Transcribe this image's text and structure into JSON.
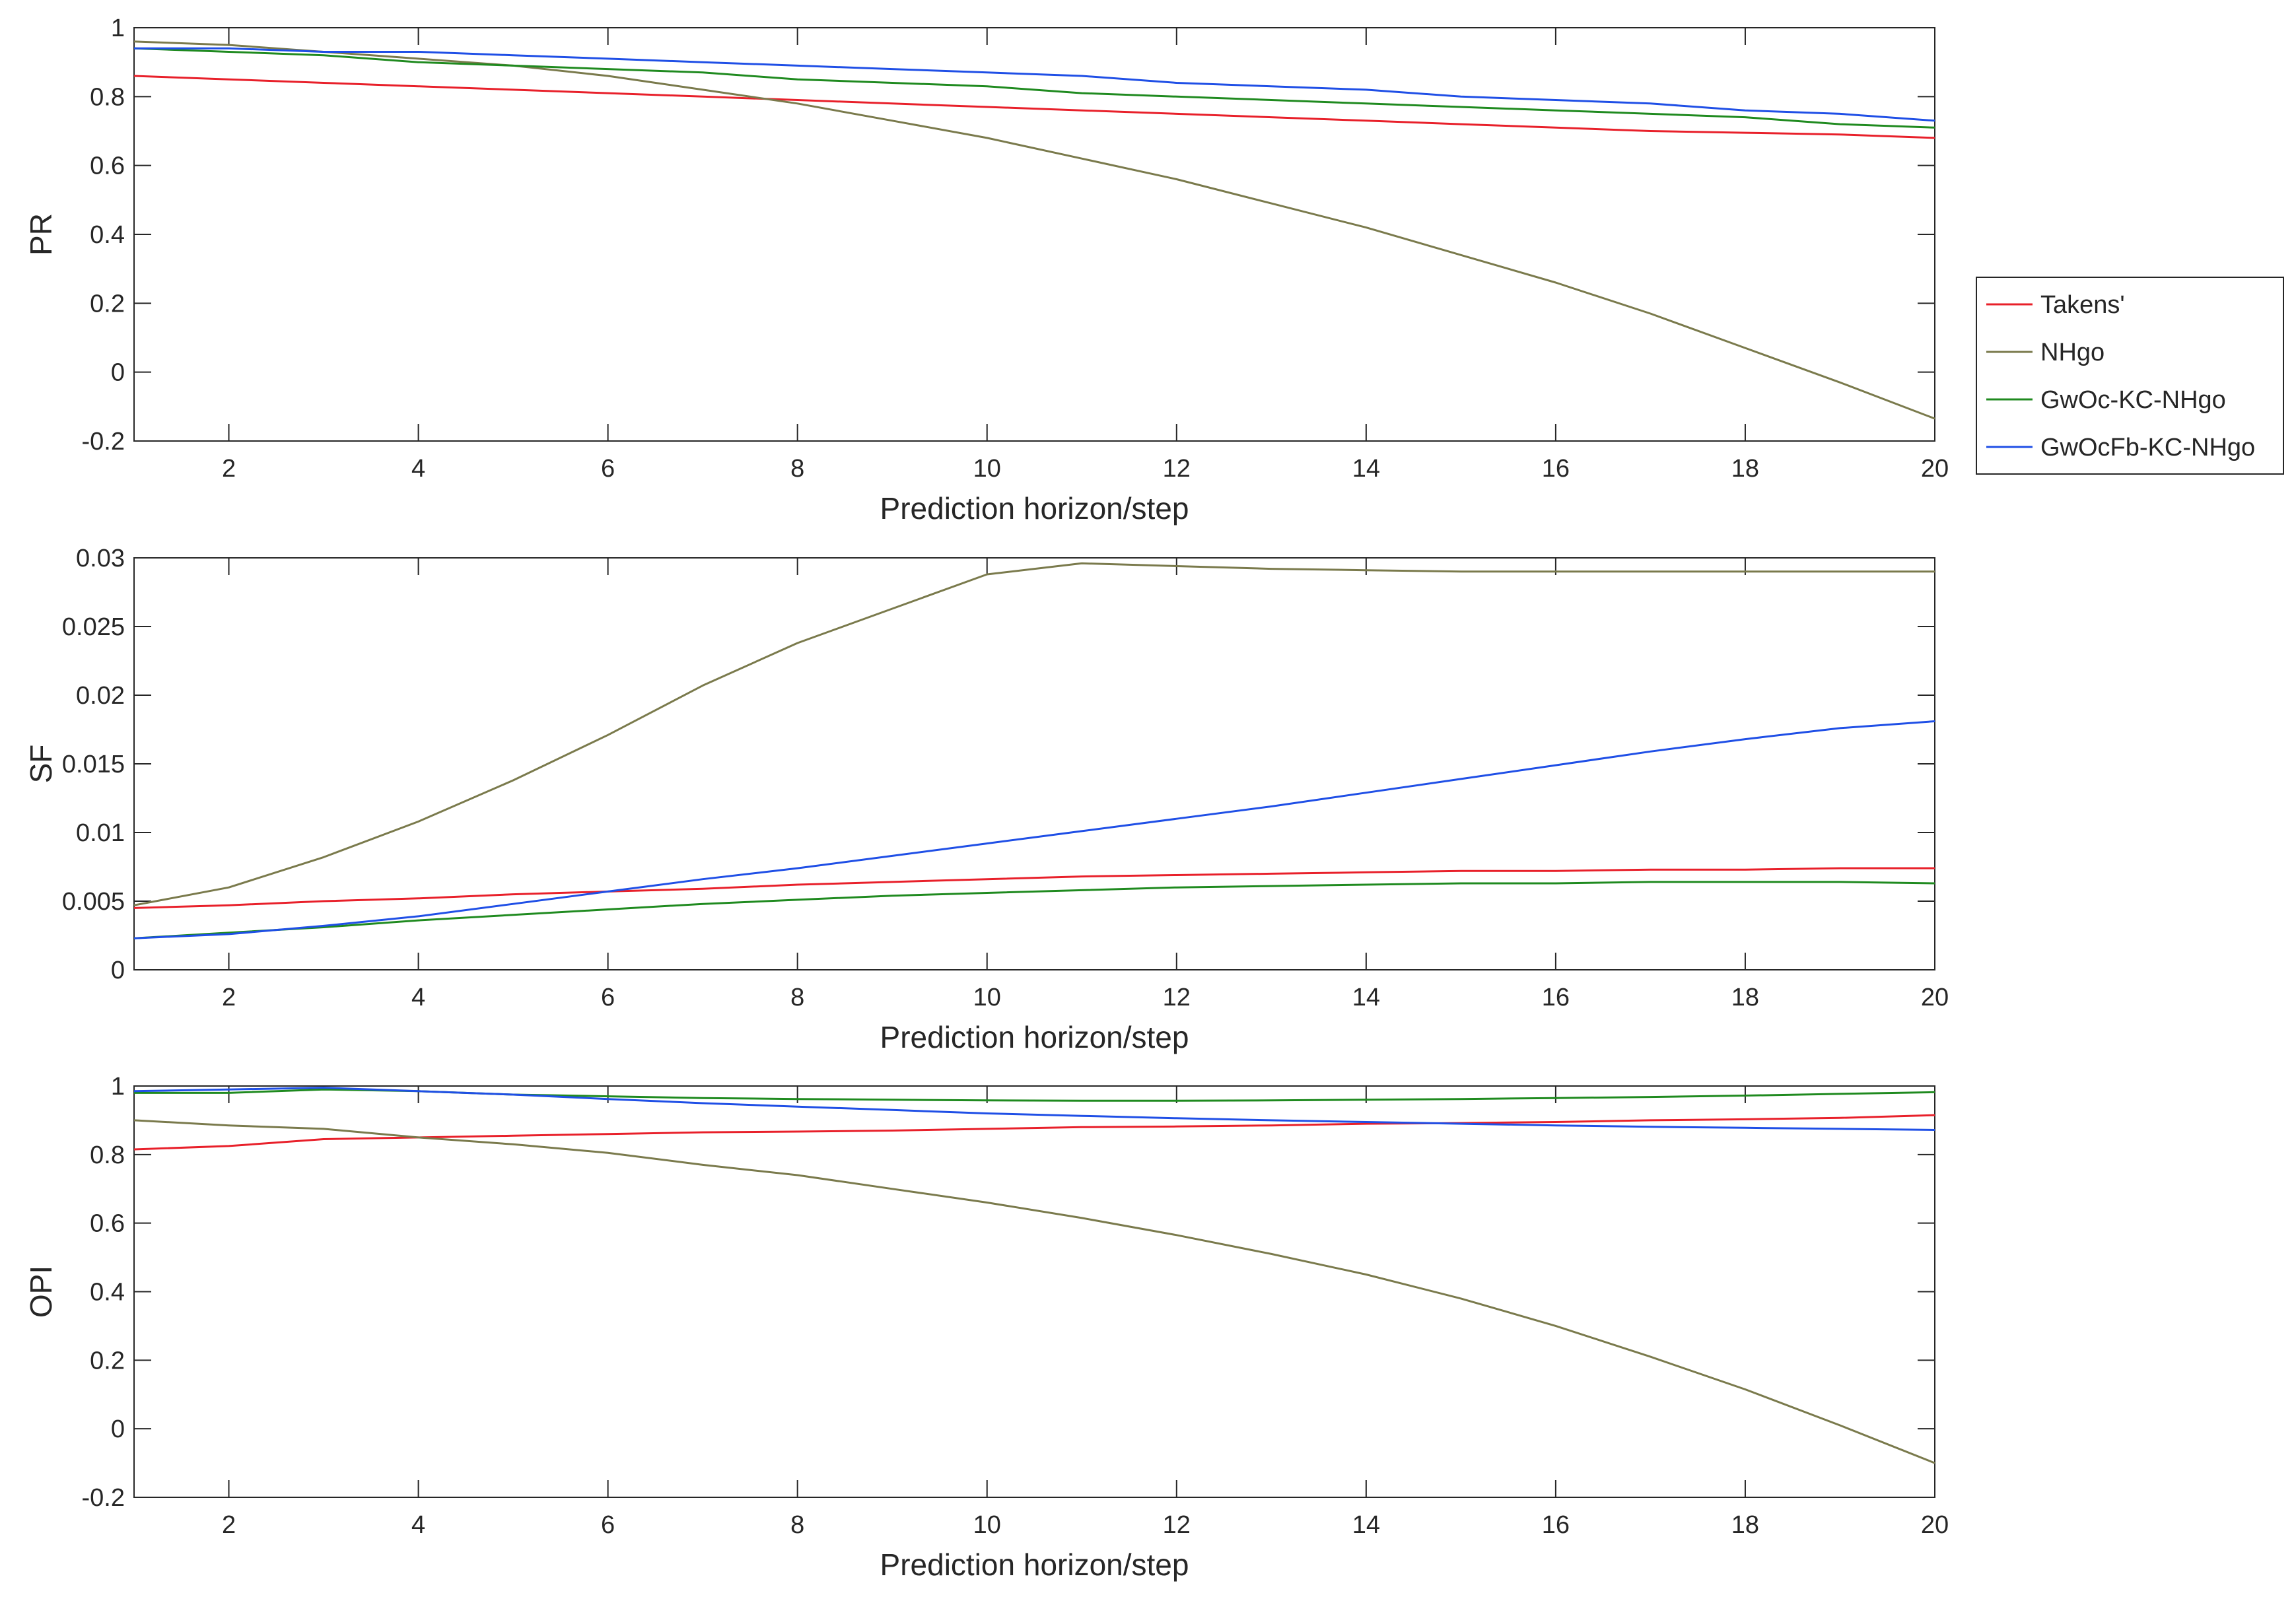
{
  "legend": {
    "placement": "right",
    "entries": [
      {
        "label": "Takens'",
        "color": "#e8202a"
      },
      {
        "label": "NHgo",
        "color": "#7a7a4c"
      },
      {
        "label": "GwOc-KC-NHgo",
        "color": "#1f8a1f"
      },
      {
        "label": "GwOcFb-KC-NHgo",
        "color": "#1f4fe6"
      }
    ]
  },
  "chart_data": [
    {
      "type": "line",
      "xlabel": "Prediction horizon/step",
      "ylabel": "PR",
      "xlim": [
        1,
        20
      ],
      "ylim": [
        -0.2,
        1
      ],
      "xticks": [
        2,
        4,
        6,
        8,
        10,
        12,
        14,
        16,
        18,
        20
      ],
      "yticks": [
        -0.2,
        0,
        0.2,
        0.4,
        0.6,
        0.8,
        1
      ],
      "ytick_labels": [
        "-0.2",
        "0",
        "0.2",
        "0.4",
        "0.6",
        "0.8",
        "1"
      ],
      "grid": false,
      "x": [
        1,
        2,
        3,
        4,
        5,
        6,
        7,
        8,
        9,
        10,
        11,
        12,
        13,
        14,
        15,
        16,
        17,
        18,
        19,
        20
      ],
      "series": [
        {
          "name": "Takens'",
          "color": "#e8202a",
          "values": [
            0.86,
            0.85,
            0.84,
            0.83,
            0.82,
            0.81,
            0.8,
            0.79,
            0.78,
            0.77,
            0.76,
            0.75,
            0.74,
            0.73,
            0.72,
            0.71,
            0.7,
            0.695,
            0.69,
            0.68
          ]
        },
        {
          "name": "NHgo",
          "color": "#7a7a4c",
          "values": [
            0.96,
            0.95,
            0.93,
            0.91,
            0.89,
            0.86,
            0.82,
            0.78,
            0.73,
            0.68,
            0.62,
            0.56,
            0.49,
            0.42,
            0.34,
            0.26,
            0.17,
            0.07,
            -0.03,
            -0.135
          ]
        },
        {
          "name": "GwOc-KC-NHgo",
          "color": "#1f8a1f",
          "values": [
            0.94,
            0.93,
            0.92,
            0.9,
            0.89,
            0.88,
            0.87,
            0.85,
            0.84,
            0.83,
            0.81,
            0.8,
            0.79,
            0.78,
            0.77,
            0.76,
            0.75,
            0.74,
            0.72,
            0.71
          ]
        },
        {
          "name": "GwOcFb-KC-NHgo",
          "color": "#1f4fe6",
          "values": [
            0.94,
            0.94,
            0.93,
            0.93,
            0.92,
            0.91,
            0.9,
            0.89,
            0.88,
            0.87,
            0.86,
            0.84,
            0.83,
            0.82,
            0.8,
            0.79,
            0.78,
            0.76,
            0.75,
            0.73
          ]
        }
      ]
    },
    {
      "type": "line",
      "xlabel": "Prediction horizon/step",
      "ylabel": "SF",
      "xlim": [
        1,
        20
      ],
      "ylim": [
        0,
        0.03
      ],
      "xticks": [
        2,
        4,
        6,
        8,
        10,
        12,
        14,
        16,
        18,
        20
      ],
      "yticks": [
        0,
        0.005,
        0.01,
        0.015,
        0.02,
        0.025,
        0.03
      ],
      "ytick_labels": [
        "0",
        "0.005",
        "0.01",
        "0.015",
        "0.02",
        "0.025",
        "0.03"
      ],
      "grid": false,
      "x": [
        1,
        2,
        3,
        4,
        5,
        6,
        7,
        8,
        9,
        10,
        11,
        12,
        13,
        14,
        15,
        16,
        17,
        18,
        19,
        20
      ],
      "series": [
        {
          "name": "Takens'",
          "color": "#e8202a",
          "values": [
            0.0045,
            0.0047,
            0.005,
            0.0052,
            0.0055,
            0.0057,
            0.0059,
            0.0062,
            0.0064,
            0.0066,
            0.0068,
            0.0069,
            0.007,
            0.0071,
            0.0072,
            0.0072,
            0.0073,
            0.0073,
            0.0074,
            0.0074
          ]
        },
        {
          "name": "NHgo",
          "color": "#7a7a4c",
          "values": [
            0.0047,
            0.006,
            0.0082,
            0.0108,
            0.0138,
            0.0171,
            0.0207,
            0.0238,
            0.0263,
            0.0288,
            0.0296,
            0.0294,
            0.0292,
            0.0291,
            0.029,
            0.029,
            0.029,
            0.029,
            0.029,
            0.029
          ]
        },
        {
          "name": "GwOc-KC-NHgo",
          "color": "#1f8a1f",
          "values": [
            0.0023,
            0.0027,
            0.0031,
            0.0036,
            0.004,
            0.0044,
            0.0048,
            0.0051,
            0.0054,
            0.0056,
            0.0058,
            0.006,
            0.0061,
            0.0062,
            0.0063,
            0.0063,
            0.0064,
            0.0064,
            0.0064,
            0.0063
          ]
        },
        {
          "name": "GwOcFb-KC-NHgo",
          "color": "#1f4fe6",
          "values": [
            0.0023,
            0.0026,
            0.0032,
            0.0039,
            0.0048,
            0.0057,
            0.0066,
            0.0074,
            0.0083,
            0.0092,
            0.0101,
            0.011,
            0.0119,
            0.0129,
            0.0139,
            0.0149,
            0.0159,
            0.0168,
            0.0176,
            0.0181
          ]
        }
      ]
    },
    {
      "type": "line",
      "xlabel": "Prediction horizon/step",
      "ylabel": "OPI",
      "xlim": [
        1,
        20
      ],
      "ylim": [
        -0.2,
        1
      ],
      "xticks": [
        2,
        4,
        6,
        8,
        10,
        12,
        14,
        16,
        18,
        20
      ],
      "yticks": [
        -0.2,
        0,
        0.2,
        0.4,
        0.6,
        0.8,
        1
      ],
      "ytick_labels": [
        "-0.2",
        "0",
        "0.2",
        "0.4",
        "0.6",
        "0.8",
        "1"
      ],
      "grid": false,
      "x": [
        1,
        2,
        3,
        4,
        5,
        6,
        7,
        8,
        9,
        10,
        11,
        12,
        13,
        14,
        15,
        16,
        17,
        18,
        19,
        20
      ],
      "series": [
        {
          "name": "Takens'",
          "color": "#e8202a",
          "values": [
            0.815,
            0.825,
            0.845,
            0.85,
            0.855,
            0.86,
            0.865,
            0.867,
            0.87,
            0.875,
            0.88,
            0.882,
            0.885,
            0.89,
            0.892,
            0.895,
            0.9,
            0.903,
            0.907,
            0.915
          ]
        },
        {
          "name": "NHgo",
          "color": "#7a7a4c",
          "values": [
            0.9,
            0.885,
            0.875,
            0.85,
            0.83,
            0.805,
            0.77,
            0.74,
            0.7,
            0.66,
            0.615,
            0.565,
            0.51,
            0.45,
            0.38,
            0.3,
            0.21,
            0.115,
            0.01,
            -0.1
          ]
        },
        {
          "name": "GwOc-KC-NHgo",
          "color": "#1f8a1f",
          "values": [
            0.98,
            0.98,
            0.99,
            0.985,
            0.975,
            0.97,
            0.965,
            0.962,
            0.96,
            0.958,
            0.957,
            0.957,
            0.958,
            0.96,
            0.962,
            0.965,
            0.968,
            0.972,
            0.977,
            0.982
          ]
        },
        {
          "name": "GwOcFb-KC-NHgo",
          "color": "#1f4fe6",
          "values": [
            0.985,
            0.99,
            0.995,
            0.985,
            0.975,
            0.962,
            0.95,
            0.94,
            0.93,
            0.92,
            0.913,
            0.906,
            0.9,
            0.895,
            0.89,
            0.885,
            0.881,
            0.878,
            0.875,
            0.872
          ]
        }
      ]
    }
  ]
}
